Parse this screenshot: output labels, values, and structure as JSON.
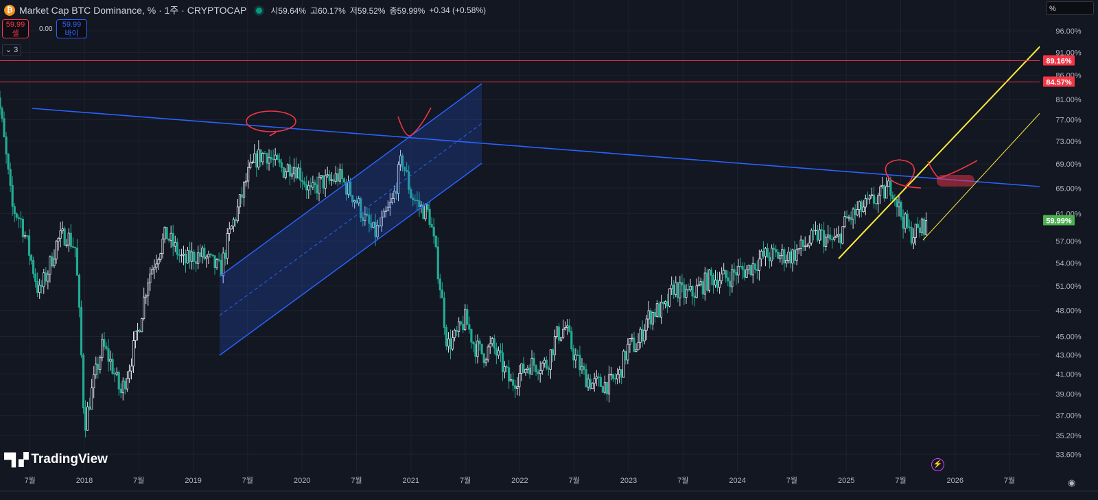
{
  "header": {
    "icon": "bitcoin-icon",
    "title": "Market Cap BTC Dominance, % · 1주 · CRYPTOCAP",
    "open": "시59.64%",
    "high": "고60.17%",
    "low": "저59.52%",
    "close": "종59.99%",
    "change": "+0.34 (+0.58%)"
  },
  "trade": {
    "sell_price": "59.99",
    "sell_label": "셀",
    "spread": "0.00",
    "buy_price": "59.99",
    "buy_label": "바이"
  },
  "indicators_toggle": "3",
  "scale_button": "%",
  "watermark": "TradingView",
  "colors": {
    "up": "#e0e3eb",
    "down": "#22ab94",
    "resistance": "#f23645",
    "trendline": "#2962ff",
    "support": "#ffeb3b",
    "last_price": "#4caf50"
  },
  "chart_data": {
    "type": "candlestick",
    "interval": "1W",
    "scale": "log",
    "ylim": [
      33.6,
      96
    ],
    "y_ticks": [
      "96.00%",
      "91.00%",
      "86.00%",
      "81.00%",
      "77.00%",
      "73.00%",
      "69.00%",
      "65.00%",
      "61.00%",
      "57.00%",
      "54.00%",
      "51.00%",
      "48.00%",
      "45.00%",
      "43.00%",
      "41.00%",
      "39.00%",
      "37.00%",
      "35.20%",
      "33.60%"
    ],
    "y_tick_values": [
      96,
      91,
      86,
      81,
      77,
      73,
      69,
      65,
      61,
      57,
      54,
      51,
      48,
      45,
      43,
      41,
      39,
      37,
      35.2,
      33.6
    ],
    "x_ticks": [
      {
        "label": "7월",
        "date": "2017-07"
      },
      {
        "label": "2018",
        "date": "2018-01"
      },
      {
        "label": "7월",
        "date": "2018-07"
      },
      {
        "label": "2019",
        "date": "2019-01"
      },
      {
        "label": "7월",
        "date": "2019-07"
      },
      {
        "label": "2020",
        "date": "2020-01"
      },
      {
        "label": "7월",
        "date": "2020-07"
      },
      {
        "label": "2021",
        "date": "2021-01"
      },
      {
        "label": "7월",
        "date": "2021-07"
      },
      {
        "label": "2022",
        "date": "2022-01"
      },
      {
        "label": "7월",
        "date": "2022-07"
      },
      {
        "label": "2023",
        "date": "2023-01"
      },
      {
        "label": "7월",
        "date": "2023-07"
      },
      {
        "label": "2024",
        "date": "2024-01"
      },
      {
        "label": "7월",
        "date": "2024-07"
      },
      {
        "label": "2025",
        "date": "2025-01"
      },
      {
        "label": "7월",
        "date": "2025-07"
      },
      {
        "label": "2026",
        "date": "2026-01"
      },
      {
        "label": "7월",
        "date": "2026-07"
      }
    ],
    "grid": true,
    "monthly_closes": [
      [
        "2017-03",
        88
      ],
      [
        "2017-04",
        75
      ],
      [
        "2017-05",
        62
      ],
      [
        "2017-06",
        60
      ],
      [
        "2017-07",
        55
      ],
      [
        "2017-08",
        50
      ],
      [
        "2017-09",
        53
      ],
      [
        "2017-10",
        57
      ],
      [
        "2017-11",
        58
      ],
      [
        "2017-12",
        56
      ],
      [
        "2018-01",
        36
      ],
      [
        "2018-02",
        40
      ],
      [
        "2018-03",
        44
      ],
      [
        "2018-04",
        42
      ],
      [
        "2018-05",
        39
      ],
      [
        "2018-06",
        42
      ],
      [
        "2018-07",
        46
      ],
      [
        "2018-08",
        52
      ],
      [
        "2018-09",
        55
      ],
      [
        "2018-10",
        58
      ],
      [
        "2018-11",
        56
      ],
      [
        "2018-12",
        54
      ],
      [
        "2019-01",
        55
      ],
      [
        "2019-02",
        55
      ],
      [
        "2019-03",
        54
      ],
      [
        "2019-04",
        53
      ],
      [
        "2019-05",
        58
      ],
      [
        "2019-06",
        62
      ],
      [
        "2019-07",
        67
      ],
      [
        "2019-08",
        70
      ],
      [
        "2019-09",
        71
      ],
      [
        "2019-10",
        69
      ],
      [
        "2019-11",
        68
      ],
      [
        "2019-12",
        69
      ],
      [
        "2020-01",
        67
      ],
      [
        "2020-02",
        64
      ],
      [
        "2020-03",
        66
      ],
      [
        "2020-04",
        66
      ],
      [
        "2020-05",
        67
      ],
      [
        "2020-06",
        65
      ],
      [
        "2020-07",
        63
      ],
      [
        "2020-08",
        60
      ],
      [
        "2020-09",
        58
      ],
      [
        "2020-10",
        60
      ],
      [
        "2020-11",
        63
      ],
      [
        "2020-12",
        70
      ],
      [
        "2021-01",
        64
      ],
      [
        "2021-02",
        62
      ],
      [
        "2021-03",
        61
      ],
      [
        "2021-04",
        53
      ],
      [
        "2021-05",
        44
      ],
      [
        "2021-06",
        45
      ],
      [
        "2021-07",
        47
      ],
      [
        "2021-08",
        44
      ],
      [
        "2021-09",
        43
      ],
      [
        "2021-10",
        44
      ],
      [
        "2021-11",
        42
      ],
      [
        "2021-12",
        40
      ],
      [
        "2022-01",
        41
      ],
      [
        "2022-02",
        42
      ],
      [
        "2022-03",
        42
      ],
      [
        "2022-04",
        42
      ],
      [
        "2022-05",
        45
      ],
      [
        "2022-06",
        46
      ],
      [
        "2022-07",
        43
      ],
      [
        "2022-08",
        41
      ],
      [
        "2022-09",
        40
      ],
      [
        "2022-10",
        40
      ],
      [
        "2022-11",
        40
      ],
      [
        "2022-12",
        41
      ],
      [
        "2023-01",
        44
      ],
      [
        "2023-02",
        44
      ],
      [
        "2023-03",
        47
      ],
      [
        "2023-04",
        48
      ],
      [
        "2023-05",
        48
      ],
      [
        "2023-06",
        51
      ],
      [
        "2023-07",
        50
      ],
      [
        "2023-08",
        50
      ],
      [
        "2023-09",
        51
      ],
      [
        "2023-10",
        52
      ],
      [
        "2023-11",
        52
      ],
      [
        "2023-12",
        52
      ],
      [
        "2024-01",
        53
      ],
      [
        "2024-02",
        53
      ],
      [
        "2024-03",
        54
      ],
      [
        "2024-04",
        55
      ],
      [
        "2024-05",
        55
      ],
      [
        "2024-06",
        55
      ],
      [
        "2024-07",
        55
      ],
      [
        "2024-08",
        56
      ],
      [
        "2024-09",
        57
      ],
      [
        "2024-10",
        58
      ],
      [
        "2024-11",
        57
      ],
      [
        "2024-12",
        57
      ],
      [
        "2025-01",
        60
      ],
      [
        "2025-02",
        61
      ],
      [
        "2025-03",
        62
      ],
      [
        "2025-04",
        63
      ],
      [
        "2025-05",
        64
      ],
      [
        "2025-06",
        65.5
      ],
      [
        "2025-07",
        61
      ],
      [
        "2025-08",
        58
      ],
      [
        "2025-09",
        58.5
      ],
      [
        "2025-10",
        59.99
      ]
    ],
    "last_price": "59.99%",
    "horizontal_levels": [
      {
        "value": 89.16,
        "label": "89.16%"
      },
      {
        "value": 84.57,
        "label": "84.57%"
      }
    ]
  }
}
